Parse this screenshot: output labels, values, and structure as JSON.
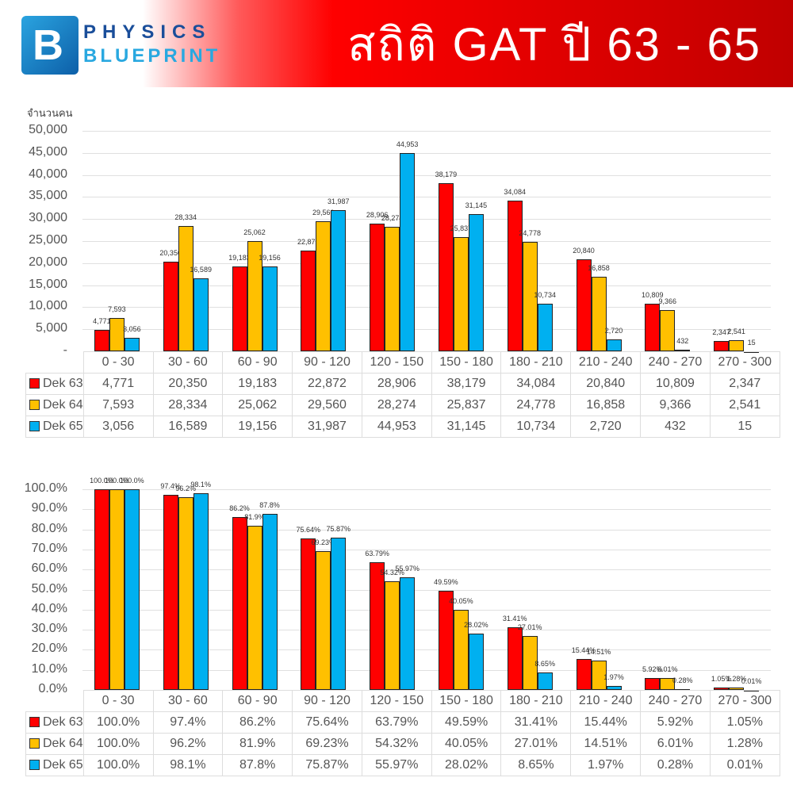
{
  "header": {
    "logo_letter": "B",
    "logo_line1": "PHYSICS",
    "logo_line2": "BLUEPRINT",
    "title": "สถิติ GAT ปี 63 - 65"
  },
  "colors": {
    "dek63": "#ff0000",
    "dek64": "#ffc000",
    "dek65": "#00b0f0"
  },
  "chart_data": [
    {
      "type": "bar",
      "title": "",
      "ylabel": "จำนวนคน",
      "xlabel": "",
      "ylim": [
        0,
        50000
      ],
      "yticks": [
        "-",
        "5,000",
        "10,000",
        "15,000",
        "20,000",
        "25,000",
        "30,000",
        "35,000",
        "40,000",
        "45,000",
        "50,000"
      ],
      "grid": true,
      "legend_position": "data-table",
      "categories": [
        "0 - 30",
        "30 - 60",
        "60 - 90",
        "90 - 120",
        "120 - 150",
        "150 - 180",
        "180 - 210",
        "210 - 240",
        "240 - 270",
        "270 - 300"
      ],
      "series": [
        {
          "name": "Dek 63",
          "values": [
            4771,
            20350,
            19183,
            22872,
            28906,
            38179,
            34084,
            20840,
            10809,
            2347
          ],
          "labels": [
            "4,771",
            "20,350",
            "19,183",
            "22,872",
            "28,906",
            "38,179",
            "34,084",
            "20,840",
            "10,809",
            "2,347"
          ]
        },
        {
          "name": "Dek 64",
          "values": [
            7593,
            28334,
            25062,
            29560,
            28274,
            25837,
            24778,
            16858,
            9366,
            2541
          ],
          "labels": [
            "7,593",
            "28,334",
            "25,062",
            "29,560",
            "28,274",
            "25,837",
            "24,778",
            "16,858",
            "9,366",
            "2,541"
          ]
        },
        {
          "name": "Dek 65",
          "values": [
            3056,
            16589,
            19156,
            31987,
            44953,
            31145,
            10734,
            2720,
            432,
            15
          ],
          "labels": [
            "3,056",
            "16,589",
            "19,156",
            "31,987",
            "44,953",
            "31,145",
            "10,734",
            "2,720",
            "432",
            "15"
          ]
        }
      ]
    },
    {
      "type": "bar",
      "title": "",
      "ylabel": "",
      "xlabel": "",
      "ylim": [
        0,
        100
      ],
      "yticks": [
        "0.0%",
        "10.0%",
        "20.0%",
        "30.0%",
        "40.0%",
        "50.0%",
        "60.0%",
        "70.0%",
        "80.0%",
        "90.0%",
        "100.0%"
      ],
      "grid": true,
      "legend_position": "data-table",
      "categories": [
        "0 - 30",
        "30 - 60",
        "60 - 90",
        "90 - 120",
        "120 - 150",
        "150 - 180",
        "180 - 210",
        "210 - 240",
        "240 - 270",
        "270 - 300"
      ],
      "series": [
        {
          "name": "Dek 63",
          "values": [
            100.0,
            97.4,
            86.2,
            75.64,
            63.79,
            49.59,
            31.41,
            15.44,
            5.92,
            1.05
          ],
          "labels": [
            "100.0%",
            "97.4%",
            "86.2%",
            "75.64%",
            "63.79%",
            "49.59%",
            "31.41%",
            "15.44%",
            "5.92%",
            "1.05%"
          ]
        },
        {
          "name": "Dek 64",
          "values": [
            100.0,
            96.2,
            81.9,
            69.23,
            54.32,
            40.05,
            27.01,
            14.51,
            6.01,
            1.28
          ],
          "labels": [
            "100.0%",
            "96.2%",
            "81.9%",
            "69.23%",
            "54.32%",
            "40.05%",
            "27.01%",
            "14.51%",
            "6.01%",
            "1.28%"
          ]
        },
        {
          "name": "Dek 65",
          "values": [
            100.0,
            98.1,
            87.8,
            75.87,
            55.97,
            28.02,
            8.65,
            1.97,
            0.28,
            0.01
          ],
          "labels": [
            "100.0%",
            "98.1%",
            "87.8%",
            "75.87%",
            "55.97%",
            "28.02%",
            "8.65%",
            "1.97%",
            "0.28%",
            "0.01%"
          ]
        }
      ]
    }
  ]
}
